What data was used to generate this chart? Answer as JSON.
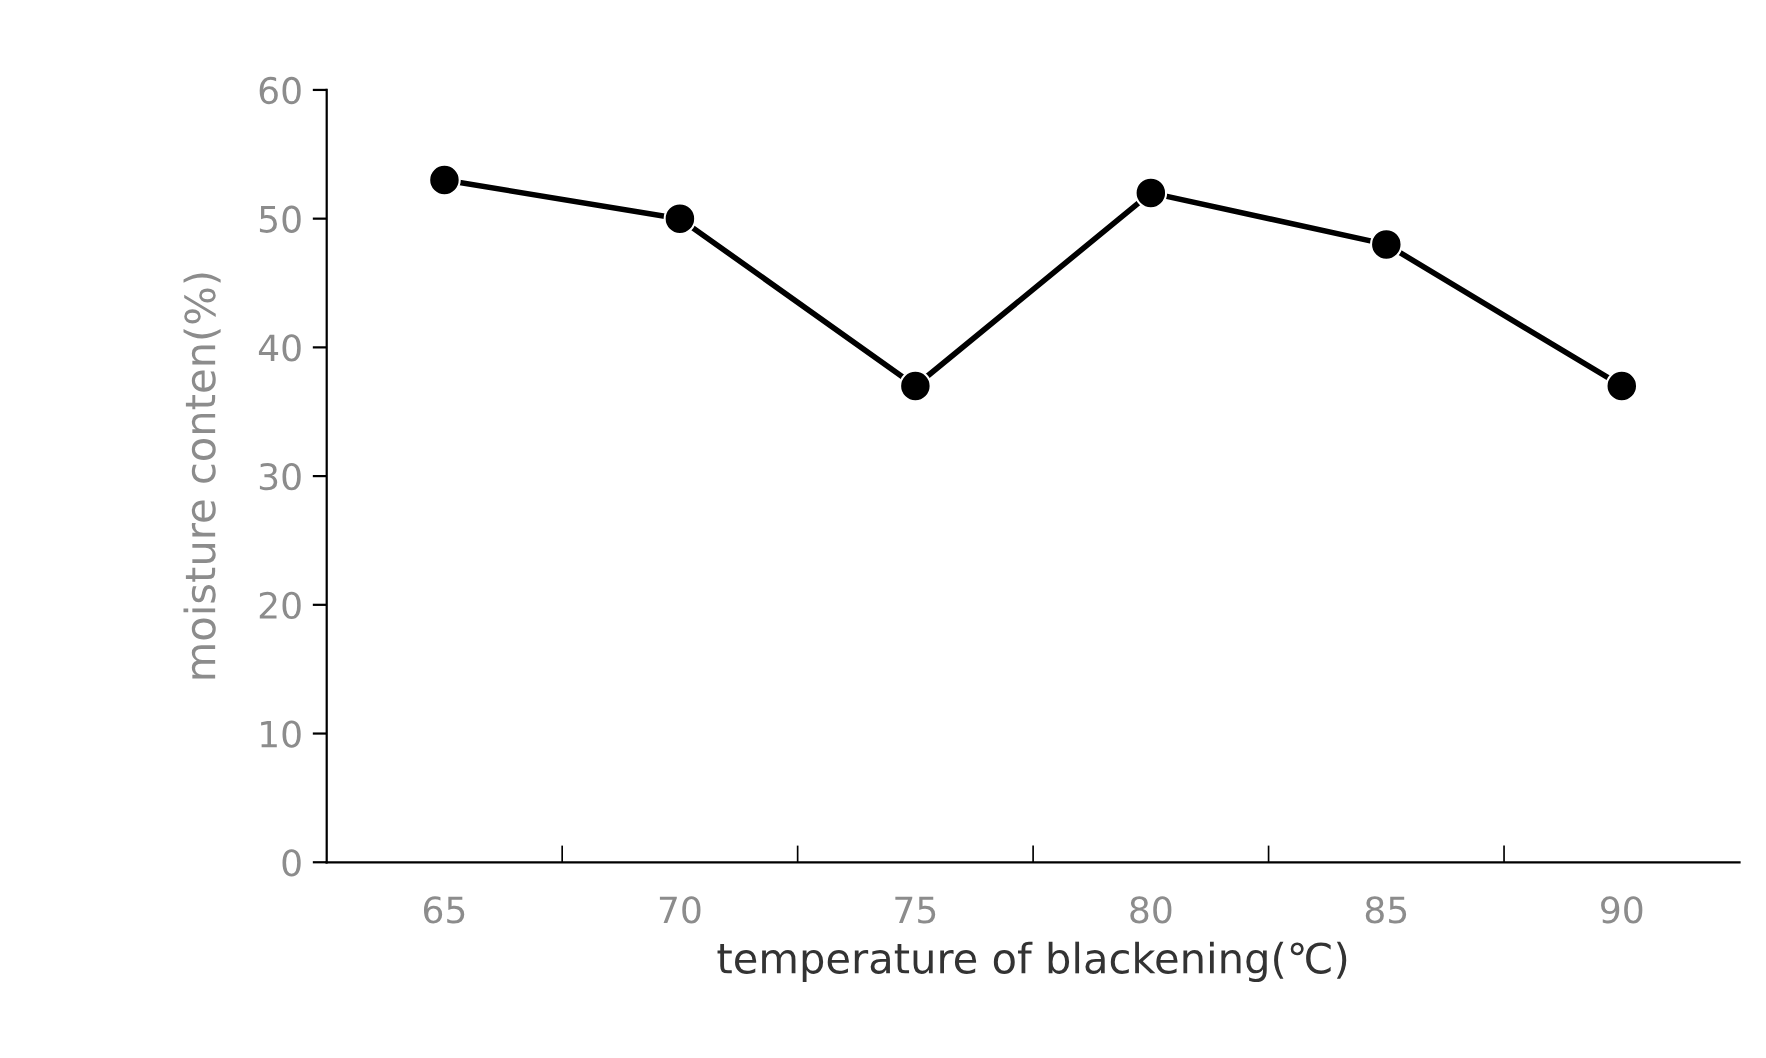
{
  "chart_data": {
    "type": "line",
    "xlabel": "temperature of blackening(℃)",
    "ylabel": "moisture conten(%)",
    "categories": [
      "65",
      "70",
      "75",
      "80",
      "85",
      "90"
    ],
    "series": [
      {
        "color": "#000000",
        "values": [
          53,
          50,
          37,
          52,
          48,
          37
        ]
      }
    ],
    "ylim": [
      0,
      60
    ],
    "yticks": [
      0,
      10,
      20,
      30,
      40,
      50,
      60
    ],
    "grid": false,
    "legend": false,
    "marker": "circle",
    "line_style": "solid"
  }
}
